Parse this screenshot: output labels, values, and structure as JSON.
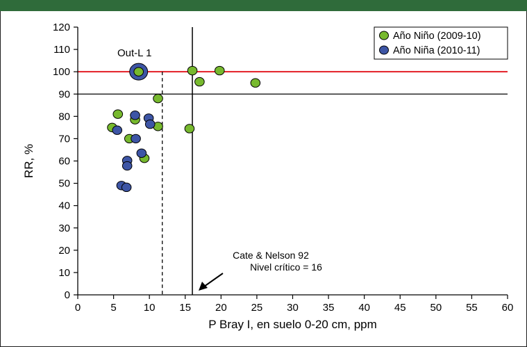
{
  "colors": {
    "header_bar": "#2f6b3a",
    "nino": "#77b92e",
    "nina": "#3d55a5",
    "threshold_line": "#e31e24",
    "axis": "#000000"
  },
  "chart_data": {
    "type": "scatter",
    "xlabel": "P Bray I, en suelo 0-20 cm, ppm",
    "ylabel": "RR, %",
    "xlim": [
      0,
      60
    ],
    "ylim": [
      0,
      120
    ],
    "xticks": [
      0,
      5,
      10,
      15,
      20,
      25,
      30,
      35,
      40,
      45,
      50,
      55,
      60
    ],
    "yticks": [
      0,
      10,
      20,
      30,
      40,
      50,
      60,
      70,
      80,
      90,
      100,
      110,
      120
    ],
    "grid": false,
    "legend_position": "top-right",
    "series": [
      {
        "name": "Año Niño (2009-10)",
        "color": "#77b92e",
        "points": [
          [
            8.5,
            100
          ],
          [
            16,
            100.5
          ],
          [
            19.8,
            100.5
          ],
          [
            17,
            95.5
          ],
          [
            24.8,
            95
          ],
          [
            11.2,
            88
          ],
          [
            5.6,
            81
          ],
          [
            8,
            78.5
          ],
          [
            4.8,
            75
          ],
          [
            11.2,
            75.5
          ],
          [
            15.6,
            74.5
          ],
          [
            7.2,
            70
          ],
          [
            9.3,
            61.2
          ]
        ]
      },
      {
        "name": "Año Niña (2010-11)",
        "color": "#3d55a5",
        "points": [
          [
            8,
            80.5
          ],
          [
            9.9,
            79.2
          ],
          [
            10.1,
            76.5
          ],
          [
            5.5,
            73.8
          ],
          [
            8.1,
            70
          ],
          [
            8.9,
            63.5
          ],
          [
            6.9,
            60.2
          ],
          [
            6.9,
            57.8
          ],
          [
            6.1,
            49
          ],
          [
            6.8,
            48.2
          ]
        ]
      }
    ],
    "reference_lines": {
      "horizontal_red": 100,
      "horizontal_black": 90,
      "vertical_solid": 16,
      "vertical_dashed": 11.8
    },
    "outlier": {
      "label": "Out-L 1",
      "x": 8.5,
      "y": 100
    },
    "annotation": {
      "line1": "Cate & Nelson 92",
      "line2": "Nivel crítico = 16"
    }
  }
}
